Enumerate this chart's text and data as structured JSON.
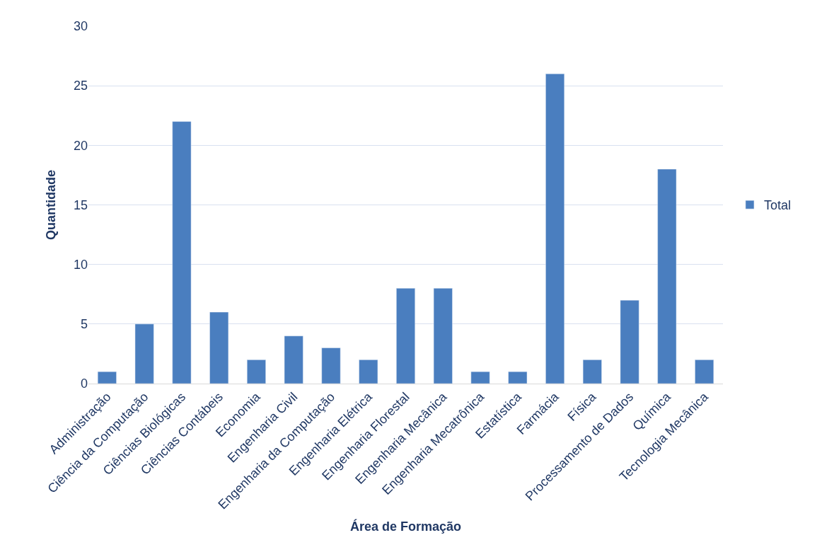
{
  "chart_data": {
    "type": "bar",
    "xlabel": "Área de Formação",
    "ylabel": "Quantidade",
    "categories": [
      "Administração",
      "Ciência da Computação",
      "Ciências Biológicas",
      "Ciências Contábeis",
      "Economia",
      "Engenharia Civil",
      "Engenharia da Computação",
      "Engenharia Elétrica",
      "Engenharia Florestal",
      "Engenharia Mecânica",
      "Engenharia Mecatrônica",
      "Estatística",
      "Farmácia",
      "Física",
      "Processamento de Dados",
      "Química",
      "Tecnologia Mecânica"
    ],
    "series": [
      {
        "name": "Total",
        "color": "#4a7ebf",
        "values": [
          1,
          5,
          22,
          6,
          2,
          4,
          3,
          2,
          8,
          8,
          1,
          1,
          26,
          2,
          7,
          18,
          2
        ]
      }
    ],
    "ylim": [
      0,
      30
    ],
    "yticks": [
      0,
      5,
      10,
      15,
      20,
      25,
      30
    ],
    "grid": "y",
    "legend": "right"
  }
}
